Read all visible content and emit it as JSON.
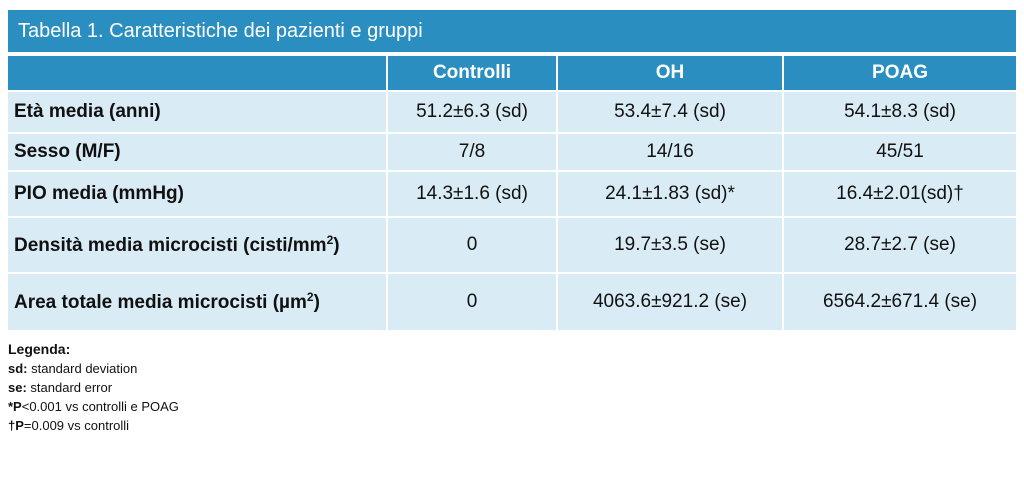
{
  "title": "Tabella 1. Caratteristiche dei pazienti e gruppi",
  "table": {
    "headers": [
      "",
      "Controlli",
      "OH",
      "POAG"
    ],
    "rows": [
      {
        "label": "Età media (anni)",
        "cells": [
          "51.2±6.3 (sd)",
          "53.4±7.4 (sd)",
          "54.1±8.3 (sd)"
        ]
      },
      {
        "label": "Sesso (M/F)",
        "cells": [
          "7/8",
          "14/16",
          "45/51"
        ]
      },
      {
        "label": "PIO media (mmHg)",
        "cells": [
          "14.3±1.6 (sd)",
          "24.1±1.83 (sd)*",
          "16.4±2.01(sd)†"
        ]
      },
      {
        "label": "Densità media microcisti (cisti/mm",
        "label_sup": "2",
        "label_end": ")",
        "cells": [
          "0",
          "19.7±3.5 (se)",
          "28.7±2.7 (se)"
        ]
      },
      {
        "label": "Area totale media microcisti  (µm",
        "label_sup": "2",
        "label_end": ")",
        "cells": [
          "0",
          "4063.6±921.2 (se)",
          "6564.2±671.4 (se)"
        ]
      }
    ]
  },
  "legend": {
    "heading": "Legenda:",
    "items": [
      {
        "key": "sd:",
        "text": " standard deviation"
      },
      {
        "key": "se:",
        "text": " standard error"
      },
      {
        "key": "*P",
        "text": "<0.001 vs controlli e POAG"
      },
      {
        "key": "†P",
        "text": "=0.009 vs controlli"
      }
    ]
  },
  "colors": {
    "header_bg": "#2a8fc0",
    "row_bg": "#d9ebf5",
    "header_text": "#ffffff"
  }
}
